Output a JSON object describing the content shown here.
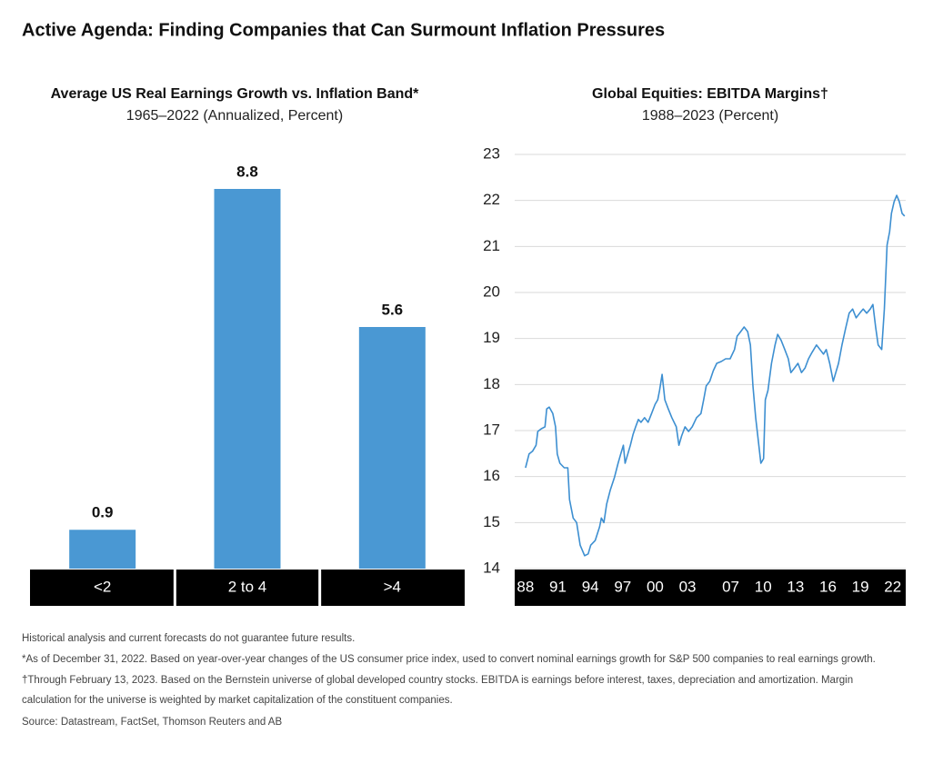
{
  "title": "Active Agenda: Finding Companies that Can Surmount Inflation Pressures",
  "chart_data": [
    {
      "type": "bar",
      "title": "Average US Real Earnings Growth vs. Inflation Band*",
      "subtitle": "1965–2022 (Annualized, Percent)",
      "categories": [
        "<2",
        "2 to 4",
        ">4"
      ],
      "values": [
        0.9,
        8.8,
        5.6
      ],
      "color": "#4a98d3"
    },
    {
      "type": "line",
      "title": "Global Equities: EBITDA Margins†",
      "subtitle": "1988–2023 (Percent)",
      "xlim": [
        1987,
        2023.2
      ],
      "ylim": [
        14,
        23
      ],
      "yticks": [
        14,
        15,
        16,
        17,
        18,
        19,
        20,
        21,
        22,
        23
      ],
      "xticks": [
        {
          "value": 1988,
          "label": "88"
        },
        {
          "value": 1991,
          "label": "91"
        },
        {
          "value": 1994,
          "label": "94"
        },
        {
          "value": 1997,
          "label": "97"
        },
        {
          "value": 2000,
          "label": "00"
        },
        {
          "value": 2003,
          "label": "03"
        },
        {
          "value": 2007,
          "label": "07"
        },
        {
          "value": 2010,
          "label": "10"
        },
        {
          "value": 2013,
          "label": "13"
        },
        {
          "value": 2016,
          "label": "16"
        },
        {
          "value": 2019,
          "label": "19"
        },
        {
          "value": 2022,
          "label": "22"
        }
      ],
      "grid": true,
      "x": [
        1988.0,
        1988.33,
        1988.65,
        1988.98,
        1989.14,
        1989.47,
        1989.8,
        1989.96,
        1990.2,
        1990.53,
        1990.78,
        1990.94,
        1991.18,
        1991.59,
        1991.92,
        1992.08,
        1992.41,
        1992.73,
        1993.06,
        1993.47,
        1993.8,
        1994.04,
        1994.45,
        1994.86,
        1995.02,
        1995.26,
        1995.51,
        1995.84,
        1996.24,
        1996.57,
        1996.82,
        1997.06,
        1997.22,
        1997.47,
        1997.71,
        1997.96,
        1998.2,
        1998.45,
        1998.69,
        1999.02,
        1999.35,
        1999.67,
        2000.0,
        2000.24,
        2000.41,
        2000.65,
        2000.9,
        2001.22,
        2001.55,
        2001.96,
        2002.2,
        2002.45,
        2002.77,
        2003.1,
        2003.43,
        2003.84,
        2004.24,
        2004.49,
        2004.73,
        2005.06,
        2005.39,
        2005.71,
        2006.12,
        2006.53,
        2006.94,
        2007.35,
        2007.59,
        2007.92,
        2008.24,
        2008.57,
        2008.82,
        2009.06,
        2009.31,
        2009.55,
        2009.79,
        2010.04,
        2010.2,
        2010.45,
        2010.77,
        2011.1,
        2011.35,
        2011.67,
        2012.0,
        2012.33,
        2012.57,
        2012.9,
        2013.22,
        2013.55,
        2013.88,
        2014.2,
        2014.53,
        2014.94,
        2015.26,
        2015.59,
        2015.84,
        2016.16,
        2016.49,
        2016.73,
        2016.98,
        2017.3,
        2017.63,
        2017.96,
        2018.28,
        2018.61,
        2018.94,
        2019.26,
        2019.59,
        2019.92,
        2020.16,
        2020.41,
        2020.65,
        2020.98,
        2021.22,
        2021.47,
        2021.71,
        2021.88,
        2022.12,
        2022.37,
        2022.61,
        2022.86,
        2023.1
      ],
      "series": [
        {
          "color": "#3d8fd1",
          "values": [
            16.19,
            16.49,
            16.55,
            16.68,
            16.98,
            17.04,
            17.08,
            17.47,
            17.51,
            17.37,
            17.08,
            16.49,
            16.29,
            16.19,
            16.19,
            15.5,
            15.1,
            15.0,
            14.51,
            14.28,
            14.32,
            14.51,
            14.61,
            14.91,
            15.1,
            15.0,
            15.4,
            15.7,
            15.99,
            16.29,
            16.49,
            16.68,
            16.29,
            16.49,
            16.68,
            16.92,
            17.08,
            17.24,
            17.18,
            17.28,
            17.18,
            17.37,
            17.57,
            17.67,
            17.87,
            18.22,
            17.67,
            17.47,
            17.28,
            17.08,
            16.68,
            16.88,
            17.08,
            16.98,
            17.08,
            17.28,
            17.37,
            17.67,
            17.97,
            18.07,
            18.3,
            18.46,
            18.5,
            18.56,
            18.56,
            18.76,
            19.05,
            19.15,
            19.25,
            19.15,
            18.86,
            17.97,
            17.28,
            16.78,
            16.29,
            16.39,
            17.67,
            17.87,
            18.46,
            18.86,
            19.09,
            18.96,
            18.76,
            18.56,
            18.26,
            18.36,
            18.46,
            18.26,
            18.36,
            18.56,
            18.7,
            18.86,
            18.76,
            18.66,
            18.76,
            18.46,
            18.07,
            18.26,
            18.46,
            18.86,
            19.21,
            19.55,
            19.64,
            19.45,
            19.55,
            19.64,
            19.55,
            19.64,
            19.74,
            19.25,
            18.86,
            18.76,
            19.64,
            21.03,
            21.32,
            21.72,
            21.97,
            22.11,
            21.97,
            21.72,
            21.66
          ]
        }
      ]
    }
  ],
  "notes": [
    "Historical analysis and current forecasts do not guarantee future results.",
    "*As of December 31, 2022. Based on year-over-year changes of the US consumer price index, used to convert nominal earnings growth for S&P 500 companies to real earnings growth.",
    "†Through February 13, 2023. Based on the Bernstein universe of global developed country stocks. EBITDA is earnings before interest, taxes, depreciation and amortization. Margin",
    "calculation for the universe is weighted by market capitalization of the constituent companies.",
    "Source: Datastream, FactSet, Thomson Reuters and AB"
  ]
}
